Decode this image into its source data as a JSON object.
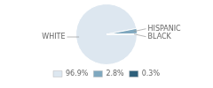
{
  "chart_data": {
    "type": "pie",
    "categories": [
      "WHITE",
      "HISPANIC",
      "BLACK"
    ],
    "values": [
      96.9,
      2.8,
      0.3
    ],
    "value_labels": [
      "96.9%",
      "2.8%",
      "0.3%"
    ],
    "colors": [
      "#dde7f0",
      "#7fa8bf",
      "#2e5f7a"
    ],
    "legend": "bottom"
  }
}
